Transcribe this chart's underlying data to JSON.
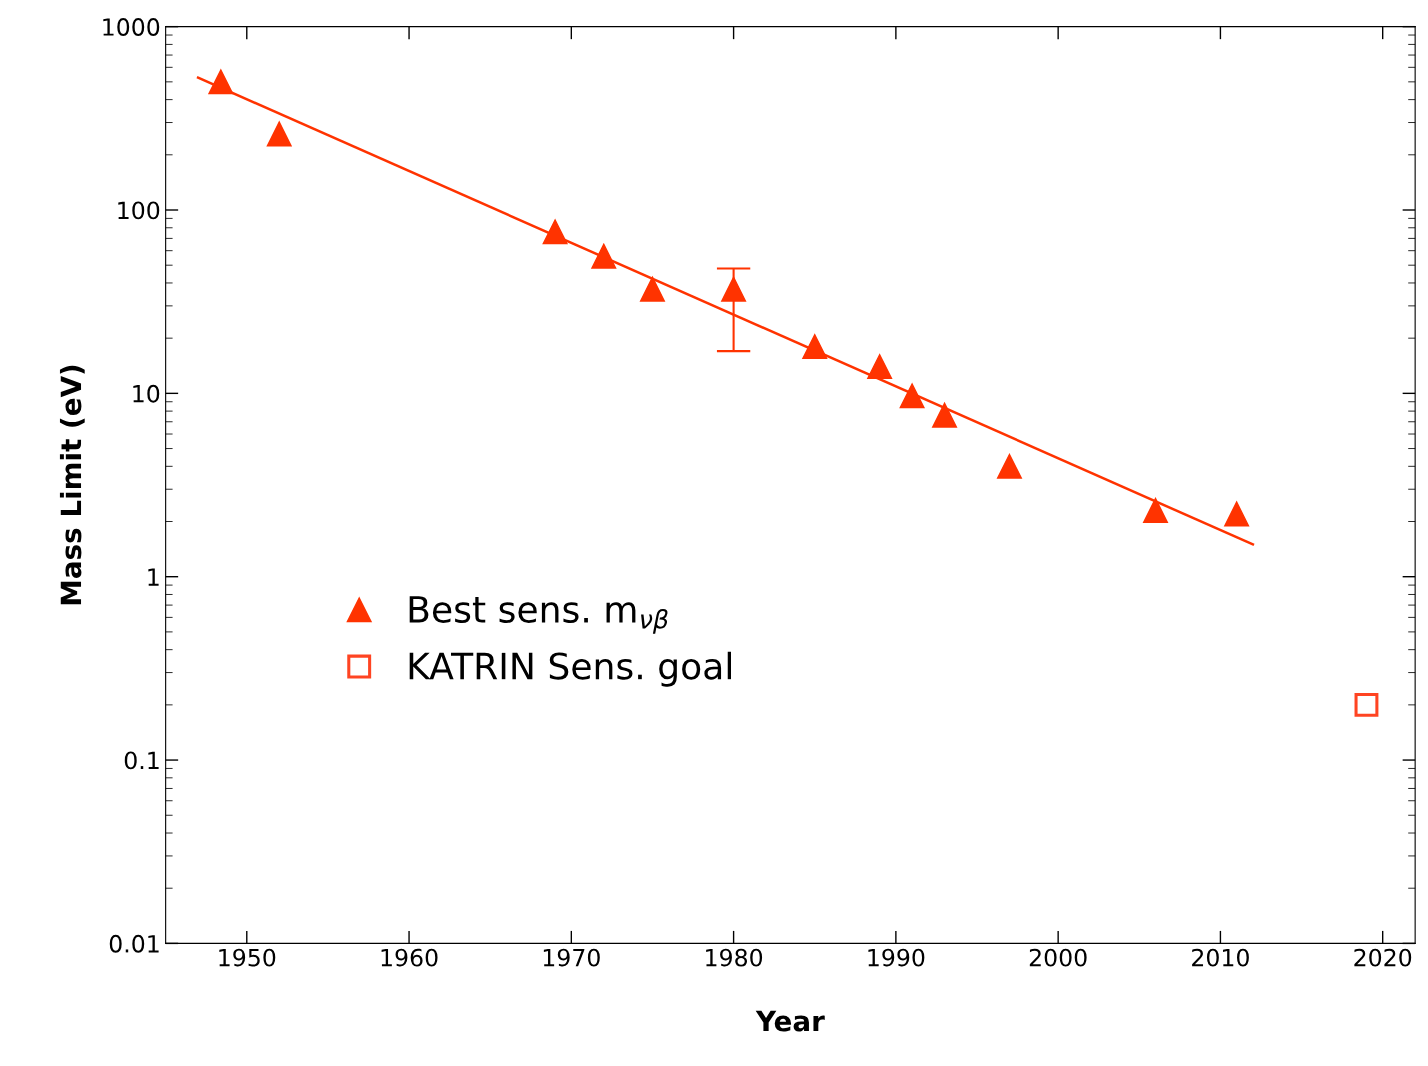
{
  "chart_data": {
    "type": "scatter",
    "xlabel": "Year",
    "ylabel": "Mass Limit (eV)",
    "log": "y",
    "xlim": [
      1945,
      2022
    ],
    "xticks": [
      1950,
      1960,
      1970,
      1980,
      1990,
      2000,
      2010,
      2020
    ],
    "ylim": [
      0.01,
      1000
    ],
    "yticks": [
      {
        "value": 0.01,
        "label": "0.01"
      },
      {
        "value": 0.1,
        "label": "0.1"
      },
      {
        "value": 1,
        "label": "1"
      },
      {
        "value": 10,
        "label": "10"
      },
      {
        "value": 100,
        "label": "100"
      },
      {
        "value": 1000,
        "label": "1000"
      }
    ],
    "grid": false,
    "legend": "center left",
    "series": [
      {
        "name": "Best sens. m$_{νβ}$",
        "marker": "triangle",
        "color": "#ff3300",
        "x": [
          1948.4,
          1952,
          1969,
          1972,
          1975,
          1980,
          1985,
          1989,
          1991,
          1993,
          1997,
          2006,
          2011
        ],
        "values": [
          500,
          260,
          76,
          56,
          37,
          37,
          18,
          14,
          9.7,
          7.6,
          4.0,
          2.3,
          2.2
        ],
        "errors": [
          null,
          null,
          null,
          null,
          null,
          [
            17,
            48
          ],
          null,
          null,
          null,
          null,
          null,
          null,
          null
        ]
      },
      {
        "name": "KATRIN Sens. goal",
        "marker": "square",
        "color": "#ff4422",
        "x": [
          2019
        ],
        "values": [
          0.2
        ]
      },
      {
        "type": "line",
        "color": "#ff3300",
        "line_style": "solid",
        "marker": "none",
        "x": [
          1947,
          2012
        ],
        "values": [
          527,
          1.5
        ]
      }
    ]
  }
}
